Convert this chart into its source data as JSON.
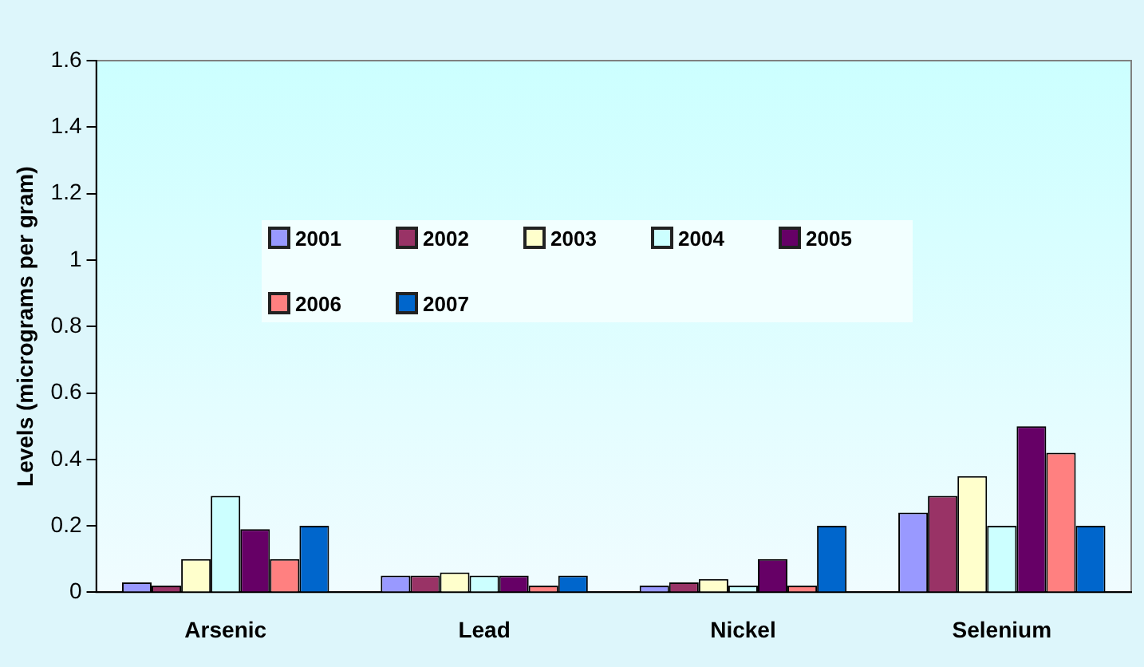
{
  "chart_data": {
    "type": "bar",
    "ylabel": "Levels (micrograms per gram)",
    "categories": [
      "Arsenic",
      "Lead",
      "Nickel",
      "Selenium"
    ],
    "series": [
      {
        "name": "2001",
        "color": "#9999ff",
        "values": [
          0.03,
          0.05,
          0.02,
          0.24
        ]
      },
      {
        "name": "2002",
        "color": "#993366",
        "values": [
          0.02,
          0.05,
          0.03,
          0.29
        ]
      },
      {
        "name": "2003",
        "color": "#ffffcc",
        "values": [
          0.1,
          0.06,
          0.04,
          0.35
        ]
      },
      {
        "name": "2004",
        "color": "#ccffff",
        "values": [
          0.29,
          0.05,
          0.02,
          0.2
        ]
      },
      {
        "name": "2005",
        "color": "#660066",
        "values": [
          0.19,
          0.05,
          0.1,
          0.5
        ]
      },
      {
        "name": "2006",
        "color": "#ff8080",
        "values": [
          0.1,
          0.02,
          0.02,
          0.42
        ]
      },
      {
        "name": "2007",
        "color": "#0066cc",
        "values": [
          0.2,
          0.05,
          0.2,
          0.2
        ]
      }
    ],
    "ylim": [
      0,
      1.6
    ],
    "yticks": [
      0,
      0.2,
      0.4,
      0.6,
      0.8,
      1,
      1.2,
      1.4,
      1.6
    ],
    "grid": false,
    "legend": "center"
  }
}
